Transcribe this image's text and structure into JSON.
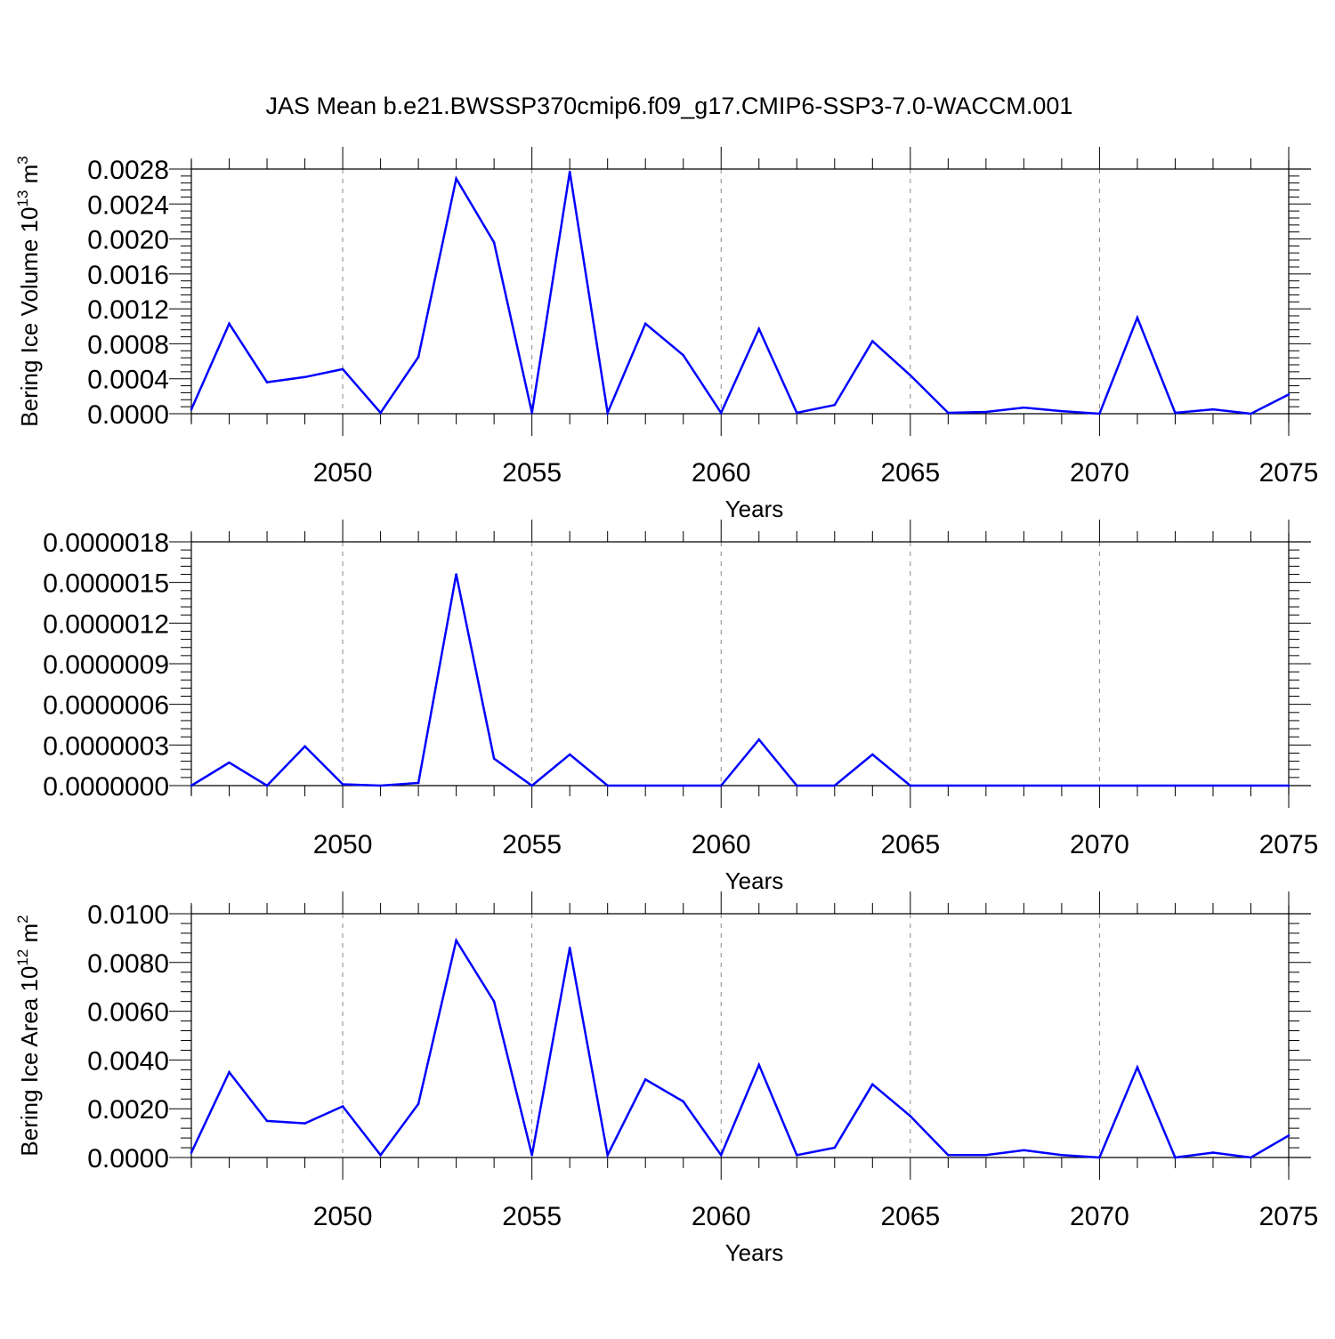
{
  "title": "JAS Mean b.e21.BWSSP370cmip6.f09_g17.CMIP6-SSP3-7.0-WACCM.001",
  "colors": {
    "series": "#0000ff",
    "axis": "#000000",
    "grid": "#888888"
  },
  "chart_data": [
    {
      "type": "line",
      "ylabel_main": "Bering Ice Volume 10",
      "ylabel_exp": "13",
      "ylabel_unit": " m",
      "ylabel_unit_exp": "3",
      "xlabel": "Years",
      "xlim": [
        2046,
        2075
      ],
      "ylim": [
        0,
        0.0028
      ],
      "yticks": [
        "0.0000",
        "0.0004",
        "0.0008",
        "0.0012",
        "0.0016",
        "0.0020",
        "0.0024",
        "0.0028"
      ],
      "ytick_values": [
        0,
        0.0004,
        0.0008,
        0.0012,
        0.0016,
        0.002,
        0.0024,
        0.0028
      ],
      "xticks": [
        "2050",
        "2055",
        "2060",
        "2065",
        "2070",
        "2075"
      ],
      "xtick_values": [
        2050,
        2055,
        2060,
        2065,
        2070,
        2075
      ],
      "x": [
        2046,
        2047,
        2048,
        2049,
        2050,
        2051,
        2052,
        2053,
        2054,
        2055,
        2056,
        2057,
        2058,
        2059,
        2060,
        2061,
        2062,
        2063,
        2064,
        2065,
        2066,
        2067,
        2068,
        2069,
        2070,
        2071,
        2072,
        2073,
        2074,
        2075
      ],
      "values": [
        5e-05,
        0.00103,
        0.00036,
        0.00042,
        0.00051,
        1e-05,
        0.00065,
        0.00269,
        0.00196,
        1e-05,
        0.00277,
        1e-05,
        0.00103,
        0.00067,
        1e-05,
        0.00097,
        1e-05,
        0.0001,
        0.00083,
        0.00044,
        1e-05,
        2e-05,
        7e-05,
        3e-05,
        0.0,
        0.0011,
        1e-05,
        5e-05,
        0.0,
        0.00022
      ]
    },
    {
      "type": "line",
      "ylabel_main": "",
      "ylabel_exp": "",
      "ylabel_unit": "",
      "ylabel_unit_exp": "",
      "xlabel": "Years",
      "xlim": [
        2046,
        2075
      ],
      "ylim": [
        0,
        1.8e-06
      ],
      "yticks": [
        "0.0000000",
        "0.0000003",
        "0.0000006",
        "0.0000009",
        "0.0000012",
        "0.0000015",
        "0.0000018"
      ],
      "ytick_values": [
        0,
        3e-07,
        6e-07,
        9e-07,
        1.2e-06,
        1.5e-06,
        1.8e-06
      ],
      "xticks": [
        "2050",
        "2055",
        "2060",
        "2065",
        "2070",
        "2075"
      ],
      "xtick_values": [
        2050,
        2055,
        2060,
        2065,
        2070,
        2075
      ],
      "x": [
        2046,
        2047,
        2048,
        2049,
        2050,
        2051,
        2052,
        2053,
        2054,
        2055,
        2056,
        2057,
        2058,
        2059,
        2060,
        2061,
        2062,
        2063,
        2064,
        2065,
        2066,
        2067,
        2068,
        2069,
        2070,
        2071,
        2072,
        2073,
        2074,
        2075
      ],
      "values": [
        0.0,
        1.7e-07,
        0.0,
        2.9e-07,
        1e-08,
        0.0,
        2e-08,
        1.56e-06,
        2e-07,
        0.0,
        2.3e-07,
        0.0,
        0.0,
        0.0,
        0.0,
        3.4e-07,
        0.0,
        0.0,
        2.3e-07,
        0.0,
        0.0,
        0.0,
        0.0,
        0.0,
        0.0,
        0.0,
        0.0,
        0.0,
        0.0,
        0.0
      ]
    },
    {
      "type": "line",
      "ylabel_main": "Bering Ice Area 10",
      "ylabel_exp": "12",
      "ylabel_unit": " m",
      "ylabel_unit_exp": "2",
      "xlabel": "Years",
      "xlim": [
        2046,
        2075
      ],
      "ylim": [
        0,
        0.01
      ],
      "yticks": [
        "0.0000",
        "0.0020",
        "0.0040",
        "0.0060",
        "0.0080",
        "0.0100"
      ],
      "ytick_values": [
        0,
        0.002,
        0.004,
        0.006,
        0.008,
        0.01
      ],
      "xticks": [
        "2050",
        "2055",
        "2060",
        "2065",
        "2070",
        "2075"
      ],
      "xtick_values": [
        2050,
        2055,
        2060,
        2065,
        2070,
        2075
      ],
      "x": [
        2046,
        2047,
        2048,
        2049,
        2050,
        2051,
        2052,
        2053,
        2054,
        2055,
        2056,
        2057,
        2058,
        2059,
        2060,
        2061,
        2062,
        2063,
        2064,
        2065,
        2066,
        2067,
        2068,
        2069,
        2070,
        2071,
        2072,
        2073,
        2074,
        2075
      ],
      "values": [
        0.0002,
        0.0035,
        0.0015,
        0.0014,
        0.0021,
        0.0001,
        0.0022,
        0.0089,
        0.0064,
        0.0001,
        0.0086,
        0.0001,
        0.0032,
        0.0023,
        0.0001,
        0.0038,
        0.0001,
        0.0004,
        0.003,
        0.0017,
        0.0001,
        0.0001,
        0.0003,
        0.0001,
        0.0,
        0.0037,
        0.0,
        0.0002,
        0.0,
        0.0009
      ]
    }
  ]
}
